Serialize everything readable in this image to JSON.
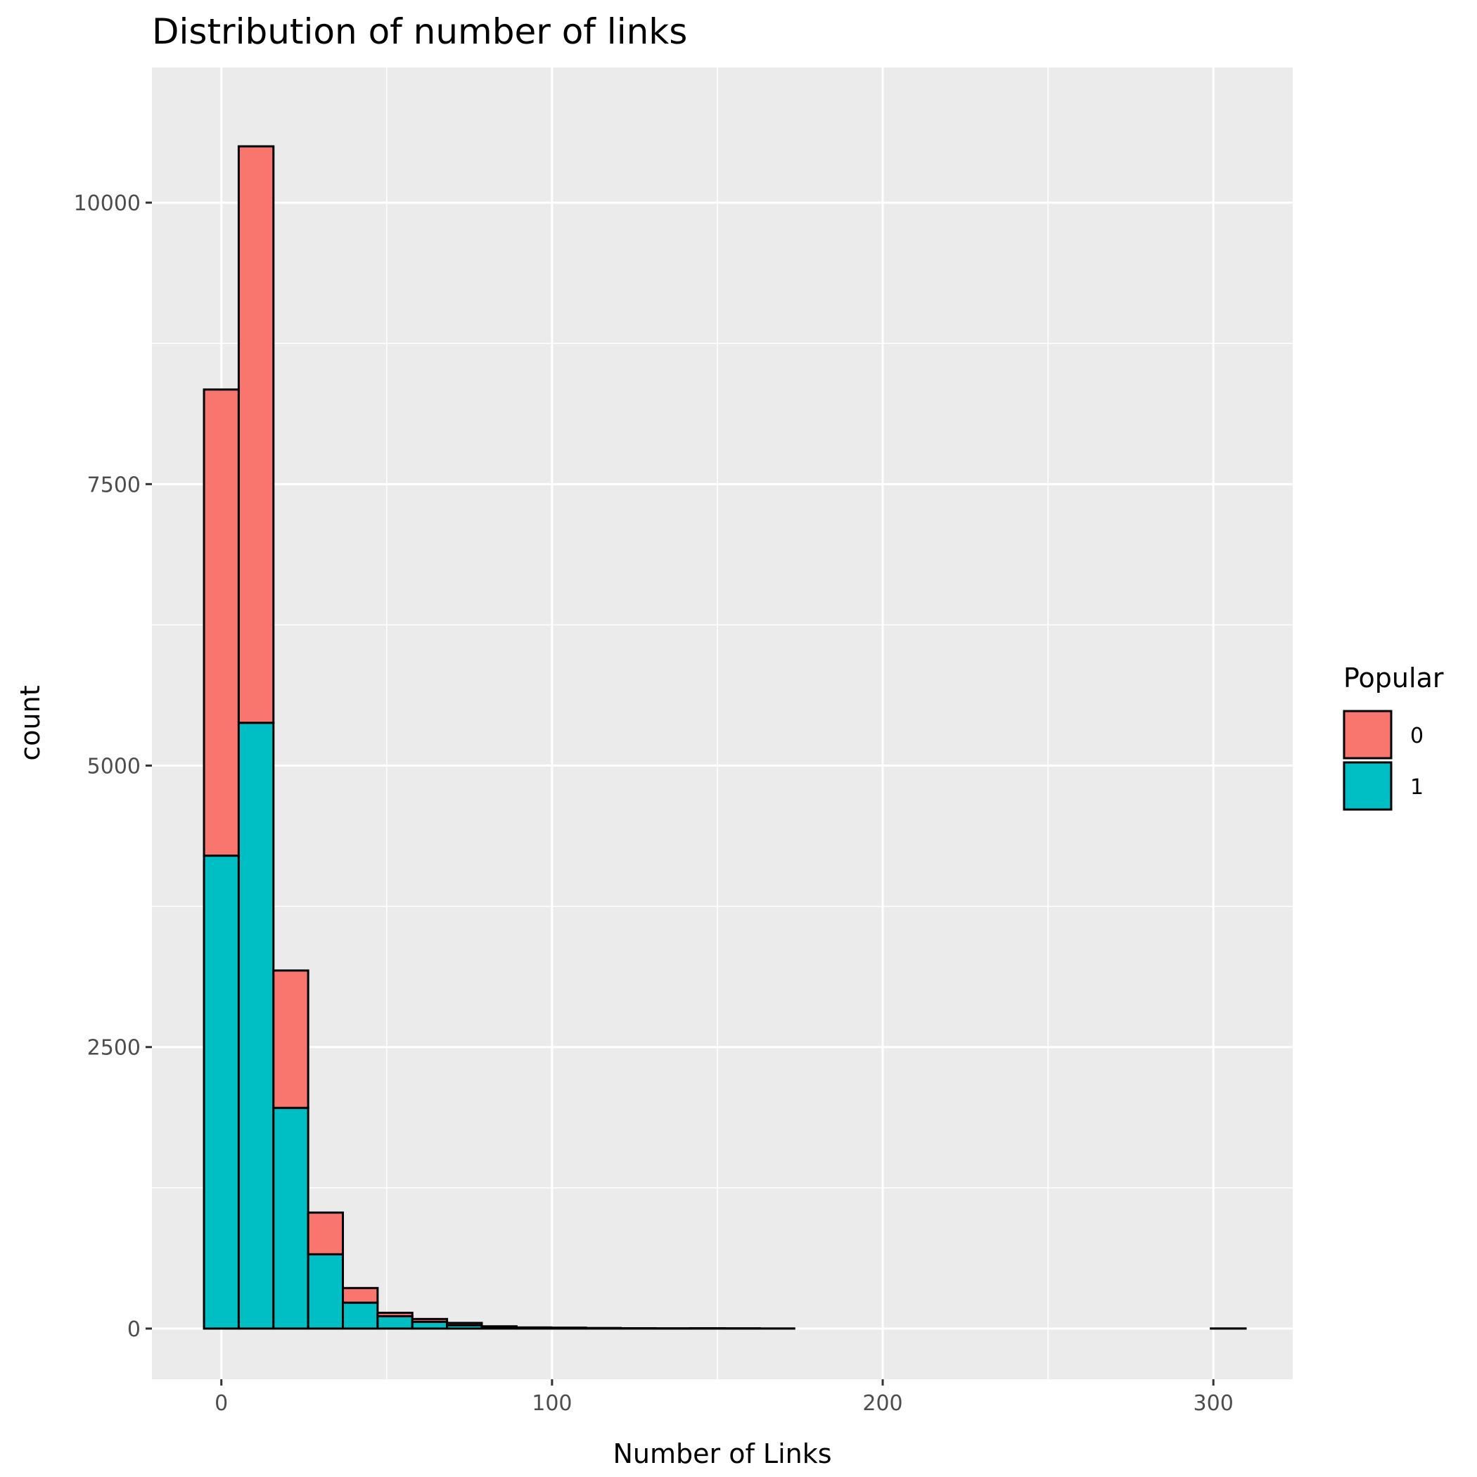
{
  "chart_data": {
    "type": "bar",
    "stacked": true,
    "title": "Distribution of number of links",
    "xlabel": "Number of Links",
    "ylabel": "count",
    "xlim": [
      -21,
      324
    ],
    "ylim": [
      -450,
      11200
    ],
    "x_ticks": [
      0,
      100,
      200,
      300
    ],
    "y_ticks": [
      0,
      2500,
      5000,
      7500,
      10000
    ],
    "x_tick_labels": [
      "0",
      "100",
      "200",
      "300"
    ],
    "y_tick_labels": [
      "0",
      "2500",
      "5000",
      "7500",
      "10000"
    ],
    "grid": true,
    "legend": {
      "title": "Popular",
      "position": "right",
      "entries": [
        "0",
        "1"
      ]
    },
    "bin_width": 10.5,
    "bin_centers": [
      0,
      10.5,
      21,
      31.5,
      42,
      52.5,
      63,
      73.5,
      84,
      94.5,
      105,
      115.5,
      126,
      136.5,
      147,
      157.5,
      168,
      178.5,
      189,
      199.5,
      210,
      220.5,
      231,
      241.5,
      252,
      262.5,
      273,
      283.5,
      294,
      304.5
    ],
    "series": [
      {
        "name": "1",
        "color": "#00BFC4",
        "values": [
          4200,
          5380,
          1960,
          660,
          230,
          110,
          60,
          30,
          12,
          6,
          5,
          3,
          2,
          1,
          2,
          1,
          1,
          0,
          0,
          0,
          0,
          0,
          0,
          0,
          0,
          0,
          0,
          0,
          0,
          1
        ]
      },
      {
        "name": "0",
        "color": "#F8766D",
        "values": [
          4140,
          5120,
          1220,
          370,
          130,
          30,
          25,
          20,
          8,
          4,
          3,
          2,
          1,
          1,
          1,
          1,
          0,
          0,
          0,
          0,
          0,
          0,
          0,
          0,
          0,
          0,
          0,
          0,
          0,
          0
        ]
      }
    ]
  },
  "colors": {
    "panel_background": "#EBEBEB",
    "grid_line": "#FFFFFF",
    "bar_outline": "#000000"
  }
}
